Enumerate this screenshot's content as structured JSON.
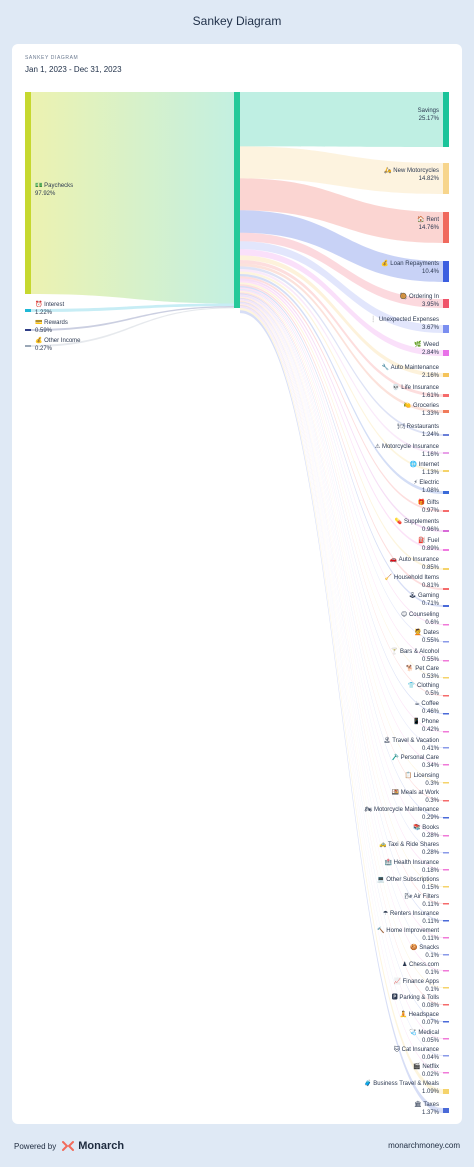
{
  "page_title": "Sankey Diagram",
  "kicker": "SANKEY DIAGRAM",
  "date_range": "Jan 1, 2023 - Dec 31, 2023",
  "footer": {
    "powered_by": "Powered by",
    "brand": "Monarch",
    "url": "monarchmoney.com"
  },
  "colors": {
    "source_bar": "#cddc39",
    "hub_bar": "#25c99a",
    "background": "#dfe9f5"
  },
  "chart_data": {
    "type": "sankey",
    "sources": [
      {
        "name": "Paychecks",
        "pct": "97.92%",
        "value": 97.92,
        "icon": "💵",
        "color": "#c6d82f"
      },
      {
        "name": "Interest",
        "pct": "1.22%",
        "value": 1.22,
        "icon": "⏰",
        "color": "#1fb8d6"
      },
      {
        "name": "Rewards",
        "pct": "0.59%",
        "value": 0.59,
        "icon": "💳",
        "color": "#2f3e87"
      },
      {
        "name": "Other Income",
        "pct": "0.27%",
        "value": 0.27,
        "icon": "💰",
        "color": "#9aa7b6"
      }
    ],
    "targets": [
      {
        "name": "Savings",
        "pct": "25.17%",
        "value": 25.17,
        "icon": "",
        "color": "#19c49a"
      },
      {
        "name": "New Motorcycles",
        "pct": "14.82%",
        "value": 14.82,
        "icon": "🛵",
        "color": "#f7d58c"
      },
      {
        "name": "Rent",
        "pct": "14.76%",
        "value": 14.76,
        "icon": "🏠",
        "color": "#f0695d"
      },
      {
        "name": "Loan Repayments",
        "pct": "10.4%",
        "value": 10.4,
        "icon": "💰",
        "color": "#3b5ee0"
      },
      {
        "name": "Ordering In",
        "pct": "3.95%",
        "value": 3.95,
        "icon": "🥘",
        "color": "#f0546a"
      },
      {
        "name": "Unexpected Expenses",
        "pct": "3.67%",
        "value": 3.67,
        "icon": "❕",
        "color": "#7a8ef0"
      },
      {
        "name": "Weed",
        "pct": "2.84%",
        "value": 2.84,
        "icon": "🌿",
        "color": "#e870e8"
      },
      {
        "name": "Auto Maintenance",
        "pct": "2.16%",
        "value": 2.16,
        "icon": "🔧",
        "color": "#f5c45a"
      },
      {
        "name": "Life Insurance",
        "pct": "1.61%",
        "value": 1.61,
        "icon": "💀",
        "color": "#f56b6b"
      },
      {
        "name": "Groceries",
        "pct": "1.33%",
        "value": 1.33,
        "icon": "🍋",
        "color": "#f07a5a"
      },
      {
        "name": "Restaurants",
        "pct": "1.24%",
        "value": 1.24,
        "icon": "🍽",
        "color": "#6a7fd8"
      },
      {
        "name": "Motorcycle Insurance",
        "pct": "1.16%",
        "value": 1.16,
        "icon": "⚠",
        "color": "#e8a0e8"
      },
      {
        "name": "Internet",
        "pct": "1.13%",
        "value": 1.13,
        "icon": "🌐",
        "color": "#f5d36a"
      },
      {
        "name": "Electric",
        "pct": "1.08%",
        "value": 1.08,
        "icon": "⚡",
        "color": "#3a6ad8"
      },
      {
        "name": "Gifts",
        "pct": "0.97%",
        "value": 0.97,
        "icon": "🎁",
        "color": "#f56b6b"
      },
      {
        "name": "Supplements",
        "pct": "0.96%",
        "value": 0.96,
        "icon": "💊",
        "color": "#d86ad8"
      },
      {
        "name": "Fuel",
        "pct": "0.89%",
        "value": 0.89,
        "icon": "⛽",
        "color": "#f07ae0"
      },
      {
        "name": "Auto Insurance",
        "pct": "0.85%",
        "value": 0.85,
        "icon": "🚗",
        "color": "#f5d36a"
      },
      {
        "name": "Household Items",
        "pct": "0.81%",
        "value": 0.81,
        "icon": "🧹",
        "color": "#f56b6b"
      },
      {
        "name": "Gaming",
        "pct": "0.71%",
        "value": 0.71,
        "icon": "🕹",
        "color": "#4a6ad8"
      },
      {
        "name": "Counseling",
        "pct": "0.6%",
        "value": 0.6,
        "icon": "😊",
        "color": "#f07ad8"
      },
      {
        "name": "Dates",
        "pct": "0.55%",
        "value": 0.55,
        "icon": "💆",
        "color": "#8a9ae8"
      },
      {
        "name": "Bars & Alcohol",
        "pct": "0.55%",
        "value": 0.55,
        "icon": "🍸",
        "color": "#f07ad8"
      },
      {
        "name": "Pet Care",
        "pct": "0.53%",
        "value": 0.53,
        "icon": "🐕",
        "color": "#f5d36a"
      },
      {
        "name": "Clothing",
        "pct": "0.5%",
        "value": 0.5,
        "icon": "👕",
        "color": "#f56b6b"
      },
      {
        "name": "Coffee",
        "pct": "0.46%",
        "value": 0.46,
        "icon": "☕",
        "color": "#4a6ad8"
      },
      {
        "name": "Phone",
        "pct": "0.42%",
        "value": 0.42,
        "icon": "📱",
        "color": "#f07ad8"
      },
      {
        "name": "Travel & Vacation",
        "pct": "0.41%",
        "value": 0.41,
        "icon": "🏝",
        "color": "#8a9ae8"
      },
      {
        "name": "Personal Care",
        "pct": "0.34%",
        "value": 0.34,
        "icon": "🪒",
        "color": "#f07ad8"
      },
      {
        "name": "Licensing",
        "pct": "0.3%",
        "value": 0.3,
        "icon": "📋",
        "color": "#f5d36a"
      },
      {
        "name": "Meals at Work",
        "pct": "0.3%",
        "value": 0.3,
        "icon": "🍱",
        "color": "#f56b6b"
      },
      {
        "name": "Motorcycle Maintenance",
        "pct": "0.29%",
        "value": 0.29,
        "icon": "🏍",
        "color": "#4a6ad8"
      },
      {
        "name": "Books",
        "pct": "0.28%",
        "value": 0.28,
        "icon": "📚",
        "color": "#f07ad8"
      },
      {
        "name": "Taxi & Ride Shares",
        "pct": "0.28%",
        "value": 0.28,
        "icon": "🚕",
        "color": "#8a9ae8"
      },
      {
        "name": "Health Insurance",
        "pct": "0.18%",
        "value": 0.18,
        "icon": "🏥",
        "color": "#f07ad8"
      },
      {
        "name": "Other Subscriptions",
        "pct": "0.15%",
        "value": 0.15,
        "icon": "💻",
        "color": "#f5d36a"
      },
      {
        "name": "Air Filters",
        "pct": "0.11%",
        "value": 0.11,
        "icon": "🌬",
        "color": "#f56b6b"
      },
      {
        "name": "Renters Insurance",
        "pct": "0.11%",
        "value": 0.11,
        "icon": "☂",
        "color": "#4a6ad8"
      },
      {
        "name": "Home Improvement",
        "pct": "0.11%",
        "value": 0.11,
        "icon": "🔨",
        "color": "#f07ad8"
      },
      {
        "name": "Snacks",
        "pct": "0.1%",
        "value": 0.1,
        "icon": "🍪",
        "color": "#8a9ae8"
      },
      {
        "name": "Chess.com",
        "pct": "0.1%",
        "value": 0.1,
        "icon": "♟",
        "color": "#f07ad8"
      },
      {
        "name": "Finance Apps",
        "pct": "0.1%",
        "value": 0.1,
        "icon": "📈",
        "color": "#f5d36a"
      },
      {
        "name": "Parking & Tolls",
        "pct": "0.08%",
        "value": 0.08,
        "icon": "🅿",
        "color": "#f56b6b"
      },
      {
        "name": "Headspace",
        "pct": "0.07%",
        "value": 0.07,
        "icon": "🧘",
        "color": "#4a6ad8"
      },
      {
        "name": "Medical",
        "pct": "0.05%",
        "value": 0.05,
        "icon": "🩺",
        "color": "#f07ad8"
      },
      {
        "name": "Cat Insurance",
        "pct": "0.04%",
        "value": 0.04,
        "icon": "🐱",
        "color": "#8a9ae8"
      },
      {
        "name": "Netflix",
        "pct": "0.02%",
        "value": 0.02,
        "icon": "🎬",
        "color": "#f07ad8"
      },
      {
        "name": "Business Travel & Meals",
        "pct": "1.09%",
        "value": 1.09,
        "icon": "🧳",
        "color": "#f5d36a"
      },
      {
        "name": "Taxes",
        "pct": "1.37%",
        "value": 1.37,
        "icon": "🏛",
        "color": "#4a6ad8"
      }
    ]
  }
}
